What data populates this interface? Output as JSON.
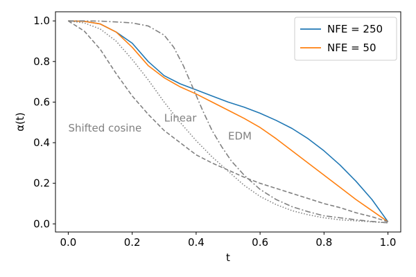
{
  "chart_data": {
    "type": "line",
    "xlabel": "t",
    "ylabel": "α(t)",
    "xlim": [
      -0.04,
      1.04
    ],
    "ylim": [
      -0.04,
      1.045
    ],
    "xticks": [
      0.0,
      0.2,
      0.4,
      0.6,
      0.8,
      1.0
    ],
    "xtick_labels": [
      "0.0",
      "0.2",
      "0.4",
      "0.6",
      "0.8",
      "1.0"
    ],
    "yticks": [
      0.0,
      0.2,
      0.4,
      0.6,
      0.8,
      1.0
    ],
    "ytick_labels": [
      "0.0",
      "0.2",
      "0.4",
      "0.6",
      "0.8",
      "1.0"
    ],
    "grid": false,
    "legend_position": "top-right",
    "series": [
      {
        "name": "NFE = 250",
        "color": "#1f77b4",
        "style": "solid",
        "in_legend": true,
        "x": [
          0.0,
          0.05,
          0.1,
          0.15,
          0.2,
          0.25,
          0.3,
          0.35,
          0.4,
          0.45,
          0.5,
          0.55,
          0.6,
          0.65,
          0.7,
          0.75,
          0.8,
          0.85,
          0.9,
          0.95,
          1.0
        ],
        "y": [
          1.0,
          0.998,
          0.985,
          0.945,
          0.89,
          0.8,
          0.73,
          0.69,
          0.66,
          0.63,
          0.6,
          0.575,
          0.545,
          0.51,
          0.47,
          0.42,
          0.36,
          0.29,
          0.21,
          0.12,
          0.01
        ]
      },
      {
        "name": "NFE = 50",
        "color": "#ff7f0e",
        "style": "solid",
        "in_legend": true,
        "x": [
          0.0,
          0.05,
          0.1,
          0.15,
          0.2,
          0.25,
          0.3,
          0.35,
          0.4,
          0.45,
          0.5,
          0.55,
          0.6,
          0.65,
          0.7,
          0.75,
          0.8,
          0.85,
          0.9,
          0.95,
          1.0
        ],
        "y": [
          1.0,
          0.998,
          0.985,
          0.945,
          0.87,
          0.78,
          0.72,
          0.675,
          0.64,
          0.6,
          0.56,
          0.52,
          0.475,
          0.42,
          0.36,
          0.3,
          0.24,
          0.18,
          0.12,
          0.065,
          0.01
        ]
      },
      {
        "name": "Shifted cosine",
        "color": "#808080",
        "style": "dashed",
        "in_legend": false,
        "x": [
          0.0,
          0.05,
          0.1,
          0.15,
          0.2,
          0.25,
          0.3,
          0.35,
          0.4,
          0.45,
          0.5,
          0.55,
          0.6,
          0.65,
          0.7,
          0.75,
          0.8,
          0.85,
          0.9,
          0.95,
          1.0
        ],
        "y": [
          1.0,
          0.95,
          0.86,
          0.74,
          0.63,
          0.54,
          0.46,
          0.4,
          0.34,
          0.3,
          0.265,
          0.23,
          0.2,
          0.175,
          0.15,
          0.125,
          0.1,
          0.08,
          0.055,
          0.035,
          0.01
        ]
      },
      {
        "name": "Linear",
        "color": "#808080",
        "style": "dotted",
        "in_legend": false,
        "x": [
          0.0,
          0.05,
          0.1,
          0.15,
          0.2,
          0.25,
          0.3,
          0.35,
          0.4,
          0.45,
          0.5,
          0.55,
          0.6,
          0.65,
          0.7,
          0.75,
          0.8,
          0.85,
          0.9,
          0.95,
          1.0
        ],
        "y": [
          1.0,
          0.99,
          0.96,
          0.9,
          0.81,
          0.71,
          0.6,
          0.5,
          0.41,
          0.33,
          0.26,
          0.19,
          0.135,
          0.095,
          0.065,
          0.045,
          0.03,
          0.02,
          0.015,
          0.01,
          0.005
        ]
      },
      {
        "name": "EDM",
        "color": "#808080",
        "style": "dashdot",
        "in_legend": false,
        "x": [
          0.0,
          0.05,
          0.1,
          0.15,
          0.2,
          0.25,
          0.3,
          0.33,
          0.36,
          0.39,
          0.42,
          0.45,
          0.48,
          0.51,
          0.55,
          0.6,
          0.65,
          0.7,
          0.75,
          0.8,
          0.85,
          0.9,
          0.95,
          1.0
        ],
        "y": [
          1.0,
          1.0,
          0.999,
          0.995,
          0.99,
          0.975,
          0.93,
          0.87,
          0.78,
          0.67,
          0.56,
          0.46,
          0.38,
          0.31,
          0.24,
          0.17,
          0.12,
          0.085,
          0.06,
          0.04,
          0.03,
          0.02,
          0.012,
          0.005
        ]
      }
    ],
    "annotations": [
      {
        "text": "Shifted cosine",
        "x": 0.0,
        "y": 0.455
      },
      {
        "text": "Linear",
        "x": 0.3,
        "y": 0.505
      },
      {
        "text": "EDM",
        "x": 0.5,
        "y": 0.415
      }
    ]
  }
}
